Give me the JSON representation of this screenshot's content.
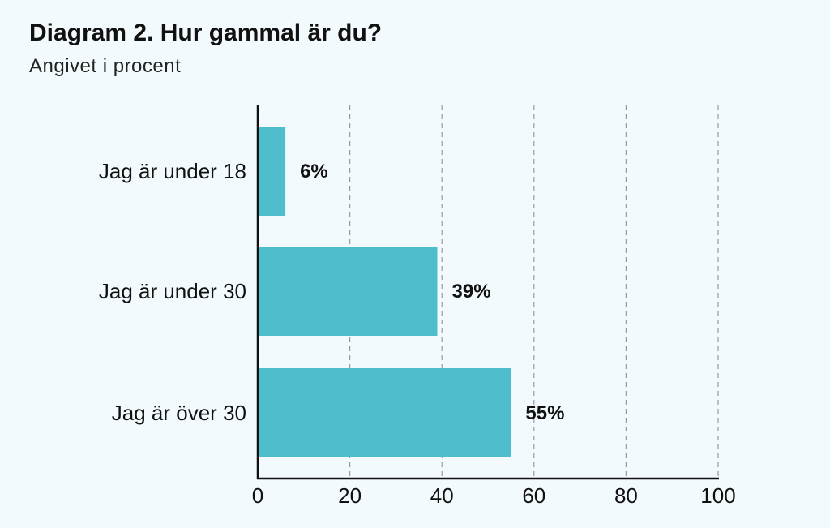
{
  "title": "Diagram 2. Hur gammal är du?",
  "subtitle": "Angivet i procent",
  "colors": {
    "background": "#f3fafd",
    "bar": "#4ebdcc",
    "text": "#111111",
    "grid": "#9a9a9a",
    "axis": "#111111"
  },
  "chart_data": {
    "type": "bar",
    "orientation": "horizontal",
    "categories": [
      "Jag är under 18",
      "Jag är under 30",
      "Jag är över 30"
    ],
    "values": [
      6,
      39,
      55
    ],
    "data_labels": [
      "6%",
      "39%",
      "55%"
    ],
    "xlim": [
      0,
      100
    ],
    "xticks": [
      0,
      20,
      40,
      60,
      80,
      100
    ],
    "xtick_labels": [
      "0",
      "20",
      "40",
      "60",
      "80",
      "100"
    ],
    "grid": "vertical dashed",
    "legend": "none"
  }
}
